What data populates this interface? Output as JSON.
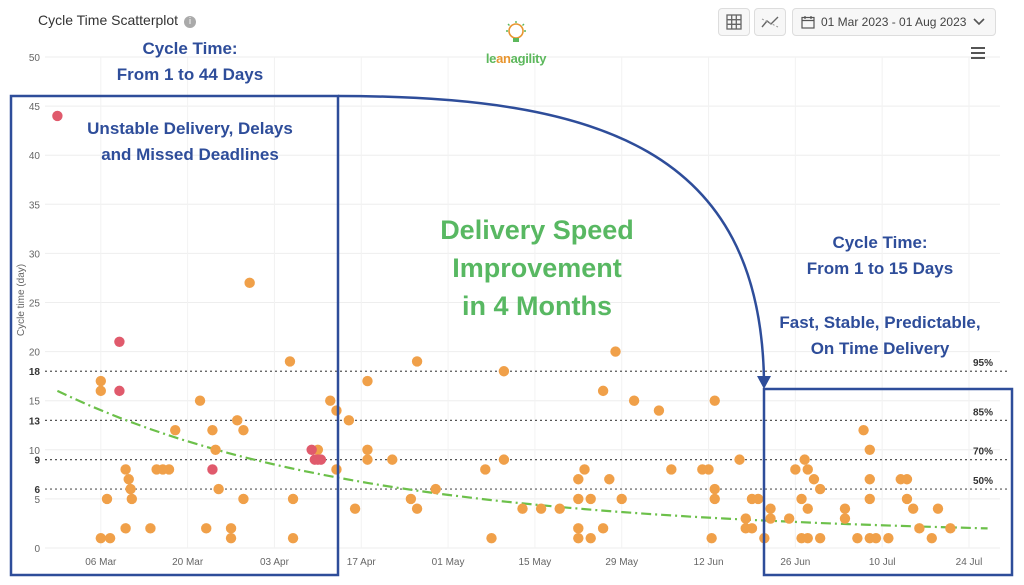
{
  "header": {
    "title": "Cycle Time Scatterplot",
    "info_icon": "info-icon",
    "date_range": "01 Mar 2023 - 01 Aug 2023",
    "toolbar_icons": [
      "grid-icon",
      "trend-icon",
      "calendar-icon",
      "chevron-down-icon",
      "menu-icon"
    ]
  },
  "logo": {
    "text_a": "le",
    "text_b": "an",
    "text_c": "agility"
  },
  "annotations": {
    "top_left": [
      "Cycle Time:",
      "From 1 to 44 Days"
    ],
    "left_box": [
      "Unstable Delivery, Delays",
      "and Missed Deadlines"
    ],
    "center": [
      "Delivery Speed",
      "Improvement",
      "in 4 Months"
    ],
    "right": [
      "Cycle Time:",
      "From 1 to 15 Days"
    ],
    "right_box": [
      "Fast, Stable, Predictable,",
      "On Time Delivery"
    ]
  },
  "colors": {
    "orange": "#f0a049",
    "red": "#e05a6c",
    "trend": "#6cc04a",
    "annotation_blue": "#2e4d9a",
    "annotation_green": "#58b862"
  },
  "chart_data": {
    "type": "scatter",
    "ylabel": "Cycle time (day)",
    "y_ticks": [
      0,
      5,
      10,
      15,
      20,
      25,
      30,
      35,
      40,
      45,
      50
    ],
    "ylim": [
      0,
      50
    ],
    "x_ticks": [
      "06 Mar",
      "20 Mar",
      "03 Apr",
      "17 Apr",
      "01 May",
      "15 May",
      "29 May",
      "12 Jun",
      "26 Jun",
      "10 Jul",
      "24 Jul"
    ],
    "x_tick_days": [
      5,
      19,
      33,
      47,
      61,
      75,
      89,
      103,
      117,
      131,
      145
    ],
    "xlim_days": [
      -4,
      150
    ],
    "percentiles": [
      {
        "label": "95%",
        "value": 18
      },
      {
        "label": "85%",
        "value": 13
      },
      {
        "label": "70%",
        "value": 9
      },
      {
        "label": "50%",
        "value": 6
      }
    ],
    "trend": {
      "start_value": 16,
      "end_value": 2
    },
    "points_red": [
      [
        -2,
        44
      ],
      [
        8,
        21
      ],
      [
        8,
        16
      ],
      [
        23,
        8
      ],
      [
        39,
        10
      ],
      [
        39.5,
        9
      ],
      [
        40,
        9
      ],
      [
        40.5,
        9
      ]
    ],
    "points_orange": [
      [
        5,
        17
      ],
      [
        5,
        16
      ],
      [
        5,
        1
      ],
      [
        6,
        5
      ],
      [
        6.5,
        1
      ],
      [
        9,
        8
      ],
      [
        9.5,
        7
      ],
      [
        9.8,
        6
      ],
      [
        10,
        5
      ],
      [
        9,
        2
      ],
      [
        13,
        2
      ],
      [
        14,
        8
      ],
      [
        15,
        8
      ],
      [
        16,
        8
      ],
      [
        17,
        12
      ],
      [
        21,
        15
      ],
      [
        22,
        2
      ],
      [
        23,
        12
      ],
      [
        23.5,
        10
      ],
      [
        24,
        6
      ],
      [
        26,
        2
      ],
      [
        26,
        1
      ],
      [
        27,
        13
      ],
      [
        28,
        12
      ],
      [
        28,
        5
      ],
      [
        29,
        27
      ],
      [
        35.5,
        19
      ],
      [
        36,
        1
      ],
      [
        36,
        5
      ],
      [
        40,
        10
      ],
      [
        42,
        15
      ],
      [
        43,
        14
      ],
      [
        43,
        8
      ],
      [
        45,
        13
      ],
      [
        46,
        4
      ],
      [
        48,
        17
      ],
      [
        48,
        10
      ],
      [
        48,
        9
      ],
      [
        52,
        9
      ],
      [
        55,
        5
      ],
      [
        56,
        19
      ],
      [
        56,
        4
      ],
      [
        59,
        6
      ],
      [
        67,
        8
      ],
      [
        68,
        1
      ],
      [
        70,
        18
      ],
      [
        70,
        9
      ],
      [
        73,
        4
      ],
      [
        76,
        4
      ],
      [
        79,
        4
      ],
      [
        82,
        7
      ],
      [
        82,
        5
      ],
      [
        82,
        2
      ],
      [
        82,
        1
      ],
      [
        83,
        8
      ],
      [
        84,
        5
      ],
      [
        84,
        1
      ],
      [
        86,
        2
      ],
      [
        86,
        16
      ],
      [
        87,
        7
      ],
      [
        88,
        20
      ],
      [
        89,
        5
      ],
      [
        91,
        15
      ],
      [
        95,
        14
      ],
      [
        97,
        8
      ],
      [
        102,
        8
      ],
      [
        103,
        8
      ],
      [
        103.5,
        1
      ],
      [
        104,
        15
      ],
      [
        104,
        6
      ],
      [
        104,
        5
      ],
      [
        108,
        9
      ],
      [
        109,
        2
      ],
      [
        109,
        3
      ],
      [
        110,
        5
      ],
      [
        110,
        2
      ],
      [
        111,
        5
      ],
      [
        112,
        1
      ],
      [
        113,
        4
      ],
      [
        113,
        3
      ],
      [
        116,
        3
      ],
      [
        117,
        8
      ],
      [
        118,
        5
      ],
      [
        118,
        1
      ],
      [
        118.5,
        9
      ],
      [
        119,
        8
      ],
      [
        119,
        4
      ],
      [
        119,
        1
      ],
      [
        120,
        7
      ],
      [
        121,
        6
      ],
      [
        121,
        1
      ],
      [
        125,
        4
      ],
      [
        125,
        3
      ],
      [
        127,
        1
      ],
      [
        128,
        12
      ],
      [
        129,
        10
      ],
      [
        129,
        7
      ],
      [
        129,
        5
      ],
      [
        129,
        1
      ],
      [
        130,
        1
      ],
      [
        132,
        1
      ],
      [
        134,
        7
      ],
      [
        135,
        7
      ],
      [
        135,
        5
      ],
      [
        136,
        4
      ],
      [
        137,
        2
      ],
      [
        139,
        1
      ],
      [
        140,
        4
      ],
      [
        142,
        2
      ]
    ]
  }
}
